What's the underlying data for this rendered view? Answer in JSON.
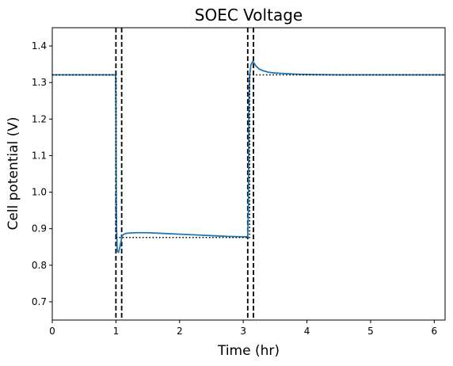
{
  "chart_data": {
    "type": "line",
    "title": "SOEC Voltage",
    "xlabel": "Time (hr)",
    "ylabel": "Cell potential (V)",
    "xlim": [
      0,
      6.17
    ],
    "ylim": [
      0.65,
      1.45
    ],
    "xticks": [
      "0",
      "1",
      "2",
      "3",
      "4",
      "5",
      "6"
    ],
    "yticks": [
      "0.7",
      "0.8",
      "0.9",
      "1.0",
      "1.1",
      "1.2",
      "1.3",
      "1.4"
    ],
    "grid": false,
    "series": [
      {
        "style": "solid",
        "color": "#1f77b4",
        "x": [
          0,
          0.995,
          1.0,
          1.005,
          1.01,
          1.02,
          1.04,
          1.06,
          1.08,
          1.1,
          1.15,
          1.2,
          1.3,
          1.5,
          1.75,
          2.0,
          2.25,
          2.5,
          2.75,
          3.0,
          3.05,
          3.07,
          3.08,
          3.085,
          3.09,
          3.1,
          3.12,
          3.15,
          3.2,
          3.25,
          3.3,
          3.4,
          3.5,
          3.6,
          3.8,
          4.0,
          4.5,
          5.0,
          5.5,
          6.0,
          6.17
        ],
        "y": [
          1.321,
          1.321,
          1.2,
          1.0,
          0.9,
          0.84,
          0.835,
          0.848,
          0.865,
          0.882,
          0.887,
          0.888,
          0.889,
          0.889,
          0.887,
          0.885,
          0.883,
          0.881,
          0.879,
          0.878,
          0.878,
          0.878,
          0.95,
          1.1,
          1.25,
          1.32,
          1.348,
          1.358,
          1.345,
          1.337,
          1.333,
          1.328,
          1.326,
          1.325,
          1.323,
          1.322,
          1.321,
          1.321,
          1.321,
          1.321,
          1.321
        ]
      },
      {
        "style": "dotted",
        "color": "#000000",
        "x": [
          0,
          1.0,
          1.0,
          3.1,
          3.1,
          6.17
        ],
        "y": [
          1.321,
          1.321,
          0.876,
          0.876,
          1.321,
          1.321
        ]
      }
    ],
    "vlines": [
      {
        "x": 1.0,
        "style": "dashed",
        "color": "#000000"
      },
      {
        "x": 1.09,
        "style": "dashed",
        "color": "#000000"
      },
      {
        "x": 3.07,
        "style": "dashed",
        "color": "#000000"
      },
      {
        "x": 3.16,
        "style": "dashed",
        "color": "#000000"
      }
    ]
  }
}
